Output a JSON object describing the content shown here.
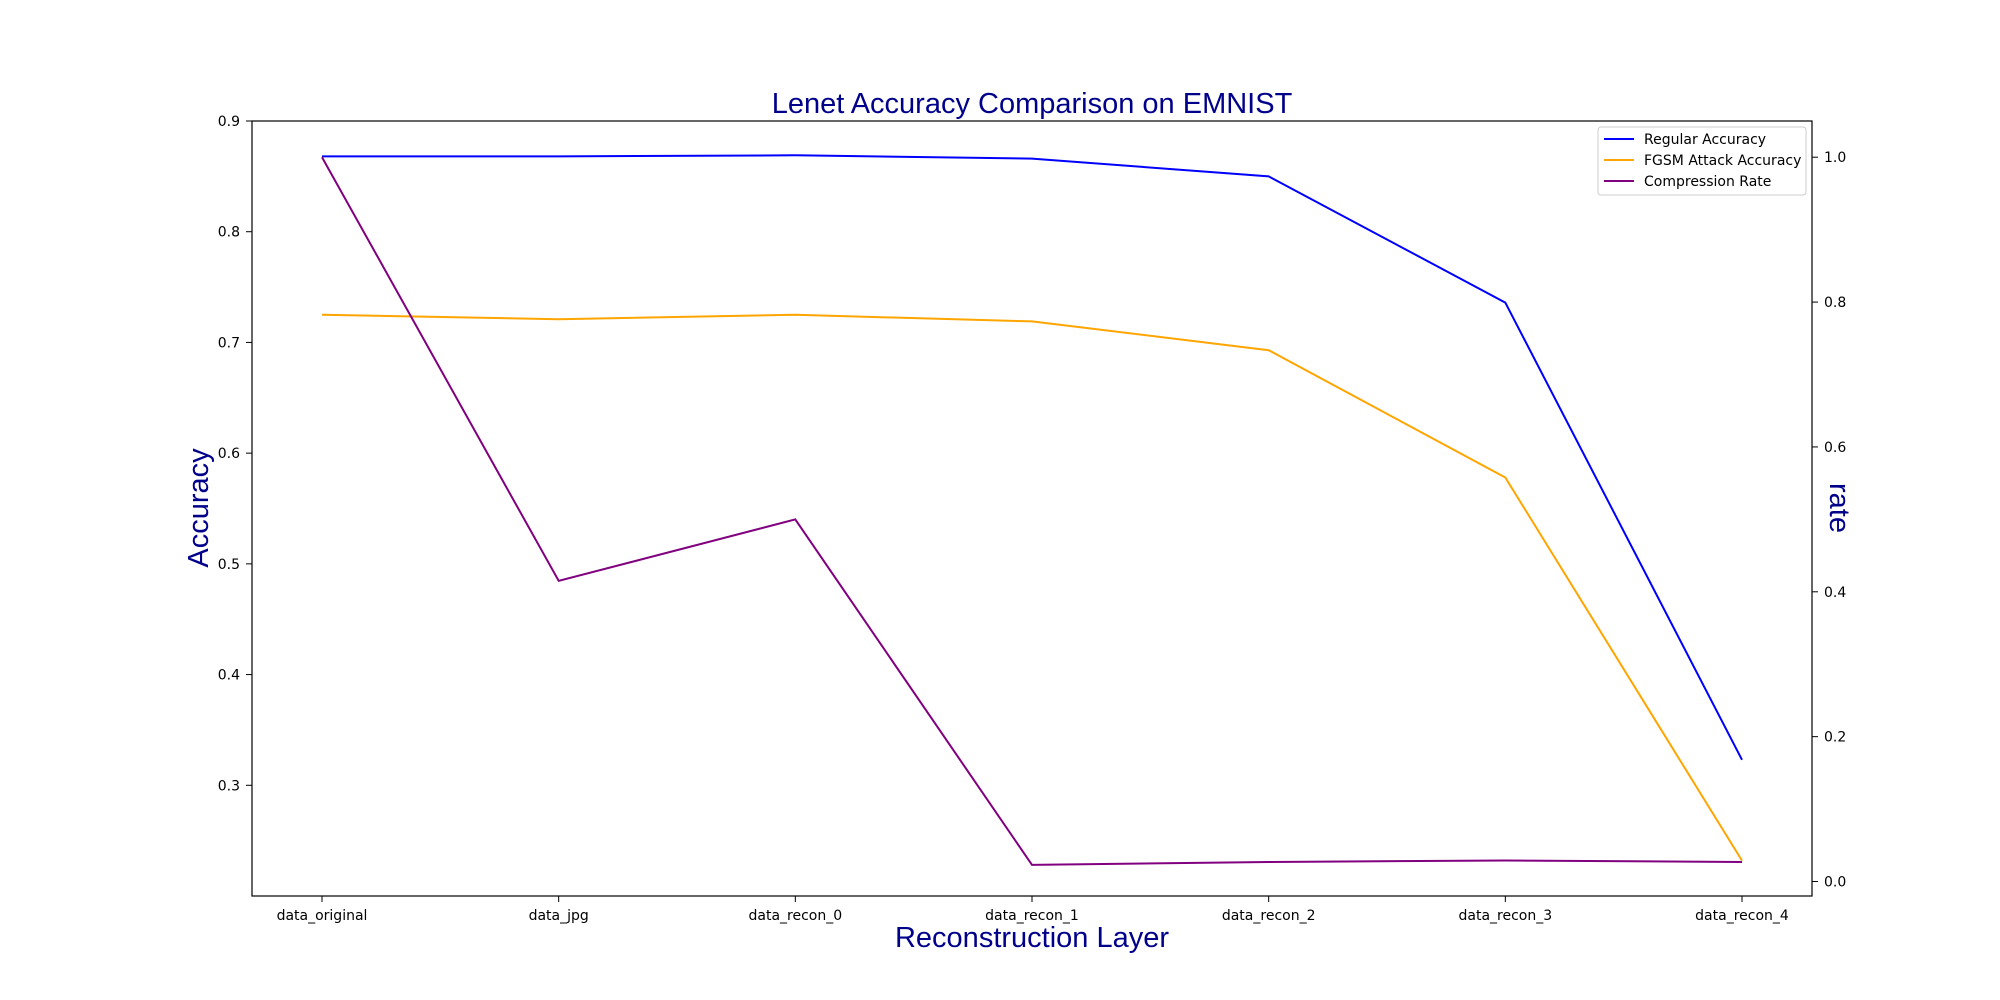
{
  "chart_data": {
    "type": "line",
    "title": "Lenet Accuracy Comparison on EMNIST",
    "xlabel": "Reconstruction Layer",
    "ylabel": "Accuracy",
    "y2label": "rate",
    "categories": [
      "data_original",
      "data_jpg",
      "data_recon_0",
      "data_recon_1",
      "data_recon_2",
      "data_recon_3",
      "data_recon_4"
    ],
    "ylim": [
      0.2,
      0.9
    ],
    "yticks": [
      0.3,
      0.4,
      0.5,
      0.6,
      0.7,
      0.8,
      0.9
    ],
    "y2lim": [
      -0.02,
      1.05
    ],
    "y2ticks": [
      0.0,
      0.2,
      0.4,
      0.6,
      0.8,
      1.0
    ],
    "grid": false,
    "legend_position": "top-right",
    "series": [
      {
        "name": "Regular Accuracy",
        "axis": "left",
        "color": "#0000ff",
        "values": [
          0.868,
          0.868,
          0.869,
          0.866,
          0.85,
          0.736,
          0.323
        ]
      },
      {
        "name": "FGSM Attack Accuracy",
        "axis": "left",
        "color": "#ffa500",
        "values": [
          0.725,
          0.721,
          0.725,
          0.719,
          0.693,
          0.578,
          0.232
        ]
      },
      {
        "name": "Compression Rate",
        "axis": "right",
        "color": "#800080",
        "values": [
          1.0,
          0.415,
          0.5,
          0.023,
          0.027,
          0.029,
          0.027
        ]
      }
    ]
  }
}
